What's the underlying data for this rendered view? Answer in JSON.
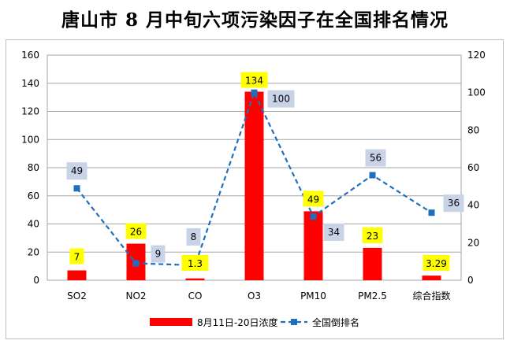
{
  "chart_data": {
    "type": "bar+line",
    "title": "唐山市 8 月中旬六项污染因子在全国排名情况",
    "categories": [
      "SO2",
      "NO2",
      "CO",
      "O3",
      "PM10",
      "PM2.5",
      "综合指数"
    ],
    "series": [
      {
        "name": "8月11日-20日浓度",
        "type": "bar",
        "axis": "left",
        "color": "#ff0000",
        "values": [
          7,
          26,
          1.3,
          134,
          49,
          23,
          3.29
        ],
        "labels": [
          "7",
          "26",
          "1.3",
          "134",
          "49",
          "23",
          "3.29"
        ]
      },
      {
        "name": "全国倒排名",
        "type": "line",
        "axis": "right",
        "color": "#1f6fbf",
        "values": [
          49,
          9,
          8,
          100,
          34,
          56,
          36
        ],
        "labels": [
          "49",
          "9",
          "8",
          "100",
          "34",
          "56",
          "36"
        ]
      }
    ],
    "y_left": {
      "min": 0,
      "max": 160,
      "ticks": [
        "0",
        "20",
        "40",
        "60",
        "80",
        "100",
        "120",
        "140",
        "160"
      ]
    },
    "y_right": {
      "min": 0,
      "max": 120,
      "ticks": [
        "0",
        "20",
        "40",
        "60",
        "80",
        "100",
        "120"
      ]
    },
    "grid": true,
    "legend": "bottom"
  }
}
